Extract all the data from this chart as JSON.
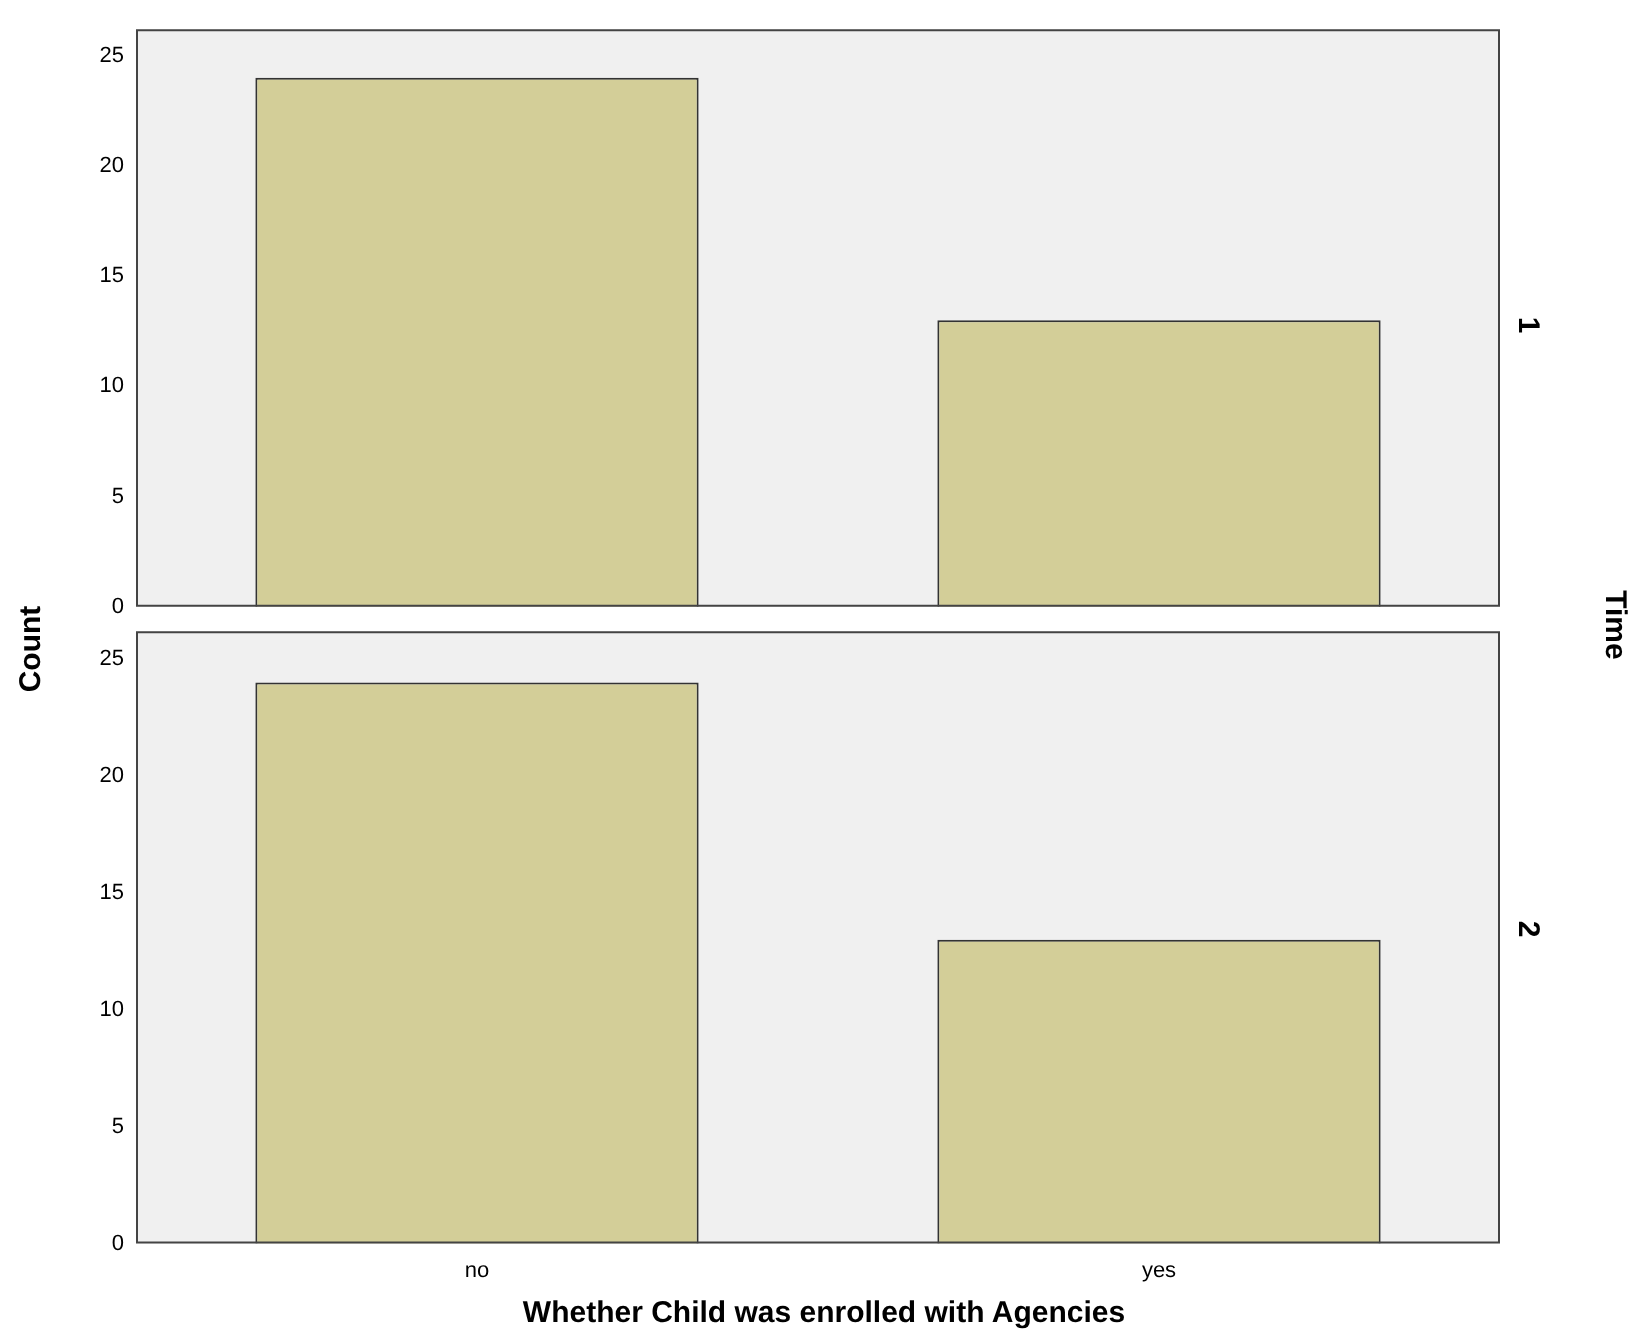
{
  "chart_data": [
    {
      "type": "bar",
      "title": "1",
      "ylabel": "Count",
      "y2label": "Time",
      "categories": [
        null,
        null
      ],
      "values": [
        24,
        13
      ],
      "color": "#d3ce98",
      "ylim": [
        0,
        26.2
      ],
      "yticks": [
        0,
        5,
        10,
        15,
        20,
        25
      ],
      "grid": false,
      "legend": false,
      "tick_labels": "y"
    },
    {
      "type": "bar",
      "title": "2",
      "xlabel": "Whether Child was enrolled with Agencies",
      "categories": [
        "no",
        "yes"
      ],
      "values": [
        24,
        13
      ],
      "color": "#d3ce98",
      "ylim": [
        0,
        26.2
      ],
      "yticks": [
        0,
        5,
        10,
        15,
        20,
        25
      ],
      "grid": false,
      "legend": false
    }
  ]
}
